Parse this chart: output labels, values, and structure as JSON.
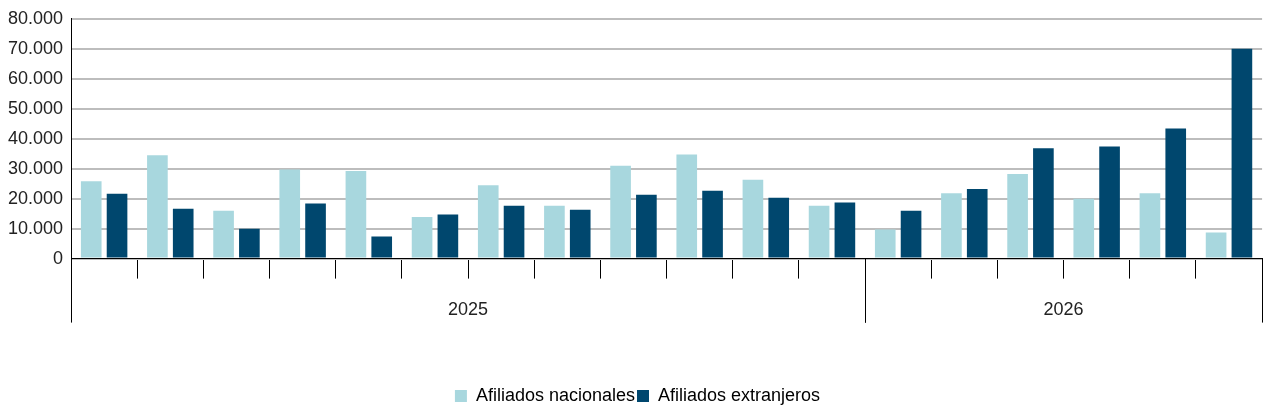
{
  "chart_data": {
    "type": "bar",
    "categories": [
      null,
      null,
      null,
      null,
      null,
      null,
      null,
      null,
      null,
      null,
      null,
      null,
      null,
      null,
      null,
      null,
      null,
      null
    ],
    "series": [
      {
        "name": "Afiliados nacionales",
        "color": "#a8d7de",
        "values": [
          25800,
          34500,
          16000,
          29700,
          29200,
          13900,
          24500,
          17600,
          31000,
          34700,
          26300,
          17600,
          9700,
          21800,
          28200,
          20000,
          21800,
          8700
        ]
      },
      {
        "name": "Afiliados extranjeros",
        "color": "#00476e",
        "values": [
          21600,
          16600,
          10000,
          18400,
          7400,
          14700,
          17600,
          16300,
          21300,
          22600,
          20300,
          18700,
          16000,
          23200,
          36800,
          37400,
          43400,
          70000
        ]
      }
    ],
    "ylim": [
      0,
      80000
    ],
    "yticks": [
      {
        "value": 0,
        "label": "0"
      },
      {
        "value": 10000,
        "label": "10.000"
      },
      {
        "value": 20000,
        "label": "20.000"
      },
      {
        "value": 30000,
        "label": "30.000"
      },
      {
        "value": 40000,
        "label": "40.000"
      },
      {
        "value": 50000,
        "label": "50.000"
      },
      {
        "value": 60000,
        "label": "60.000"
      },
      {
        "value": 70000,
        "label": "70.000"
      },
      {
        "value": 80000,
        "label": "80.000"
      }
    ],
    "grid": "y",
    "legend": "bottom",
    "annotations": [
      "2025",
      "2026"
    ]
  }
}
